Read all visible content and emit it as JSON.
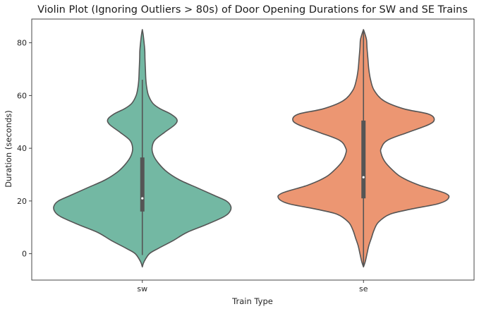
{
  "chart_data": {
    "type": "violin",
    "title": "Violin Plot (Ignoring Outliers > 80s) of Door Opening Durations for SW and SE Trains",
    "xlabel": "Train Type",
    "ylabel": "Duration (seconds)",
    "categories": [
      "sw",
      "se"
    ],
    "ylim": [
      -10,
      89
    ],
    "yticks": [
      0,
      20,
      40,
      60,
      80
    ],
    "grid": false,
    "legend": "none",
    "series": [
      {
        "category": "sw",
        "color": "#73b8a3",
        "stats": {
          "whisker_low": -0.5,
          "q1": 16,
          "median": 21,
          "q3": 36.5,
          "whisker_high": 66
        },
        "profile": [
          [
            -5,
            0.0
          ],
          [
            -3,
            0.02
          ],
          [
            0,
            0.08
          ],
          [
            2,
            0.18
          ],
          [
            5,
            0.35
          ],
          [
            8,
            0.5
          ],
          [
            11,
            0.72
          ],
          [
            14,
            0.92
          ],
          [
            16,
            0.99
          ],
          [
            18,
            1.0
          ],
          [
            20,
            0.95
          ],
          [
            22,
            0.82
          ],
          [
            25,
            0.62
          ],
          [
            28,
            0.42
          ],
          [
            31,
            0.28
          ],
          [
            34,
            0.19
          ],
          [
            37,
            0.13
          ],
          [
            40,
            0.11
          ],
          [
            43,
            0.14
          ],
          [
            46,
            0.25
          ],
          [
            49,
            0.37
          ],
          [
            51,
            0.39
          ],
          [
            53,
            0.32
          ],
          [
            55,
            0.2
          ],
          [
            57,
            0.12
          ],
          [
            60,
            0.07
          ],
          [
            63,
            0.05
          ],
          [
            66,
            0.04
          ],
          [
            70,
            0.035
          ],
          [
            74,
            0.03
          ],
          [
            77,
            0.028
          ],
          [
            80,
            0.02
          ],
          [
            83,
            0.01
          ],
          [
            85,
            0.0
          ]
        ]
      },
      {
        "category": "se",
        "color": "#ec9672",
        "stats": {
          "whisker_low": -5,
          "q1": 21,
          "median": 29,
          "q3": 50.5,
          "whisker_high": 85
        },
        "profile": [
          [
            -5,
            0.0
          ],
          [
            -3,
            0.02
          ],
          [
            0,
            0.04
          ],
          [
            3,
            0.06
          ],
          [
            6,
            0.09
          ],
          [
            9,
            0.12
          ],
          [
            12,
            0.17
          ],
          [
            15,
            0.3
          ],
          [
            17,
            0.55
          ],
          [
            19,
            0.85
          ],
          [
            21,
            0.96
          ],
          [
            23,
            0.92
          ],
          [
            26,
            0.63
          ],
          [
            29,
            0.43
          ],
          [
            32,
            0.32
          ],
          [
            35,
            0.24
          ],
          [
            38,
            0.2
          ],
          [
            40,
            0.2
          ],
          [
            43,
            0.27
          ],
          [
            46,
            0.5
          ],
          [
            49,
            0.74
          ],
          [
            51,
            0.8
          ],
          [
            53,
            0.73
          ],
          [
            55,
            0.45
          ],
          [
            58,
            0.23
          ],
          [
            62,
            0.12
          ],
          [
            66,
            0.08
          ],
          [
            70,
            0.06
          ],
          [
            74,
            0.05
          ],
          [
            78,
            0.04
          ],
          [
            81,
            0.035
          ],
          [
            83,
            0.02
          ],
          [
            85,
            0.0
          ]
        ]
      }
    ]
  }
}
